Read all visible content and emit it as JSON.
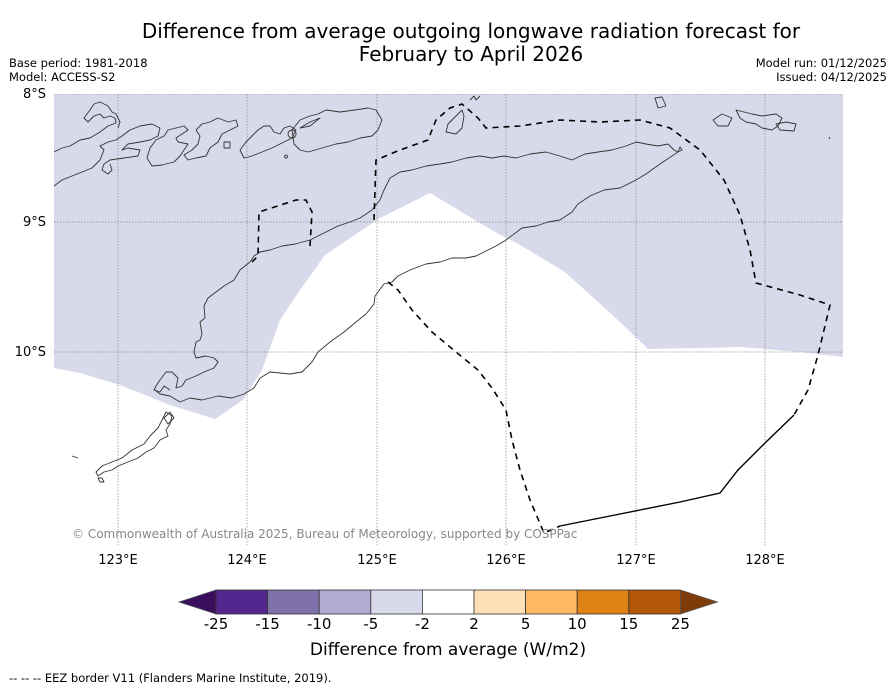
{
  "title": {
    "line1": "Difference from average outgoing longwave radiation forecast for",
    "line2": "February to April 2026"
  },
  "meta": {
    "base_period": "Base period: 1981-2018",
    "model": "Model: ACCESS-S2",
    "model_run": "Model run: 01/12/2025",
    "issued": "Issued: 04/12/2025"
  },
  "map": {
    "lat_labels": [
      "8°S",
      "9°S",
      "10°S"
    ],
    "lon_labels": [
      "123°E",
      "124°E",
      "125°E",
      "126°E",
      "127°E",
      "128°E"
    ],
    "extent": {
      "lon_min": 122.5,
      "lon_max": 128.6,
      "lat_max": -8.0,
      "lat_min": -11.5
    },
    "anomaly_fill_category": "-5 to -2",
    "anomaly_fill_color": "#d8d9ea",
    "copyright": "© Commonwealth of Australia 2025, Bureau of Meteorology, supported by COSPPac"
  },
  "colorbar": {
    "ticks": [
      "-25",
      "-15",
      "-10",
      "-5",
      "-2",
      "2",
      "5",
      "10",
      "15",
      "25"
    ],
    "colors": [
      "#3a0e5c",
      "#54278f",
      "#7f72ab",
      "#b2abd2",
      "#d8d9ea",
      "#ffffff",
      "#fee0b6",
      "#fdb863",
      "#e08214",
      "#b35806",
      "#7f3b08"
    ],
    "label": "Difference from average (W/m2)"
  },
  "footnote": "--  --  -- EEZ border V11 (Flanders Marine Institute, 2019)."
}
